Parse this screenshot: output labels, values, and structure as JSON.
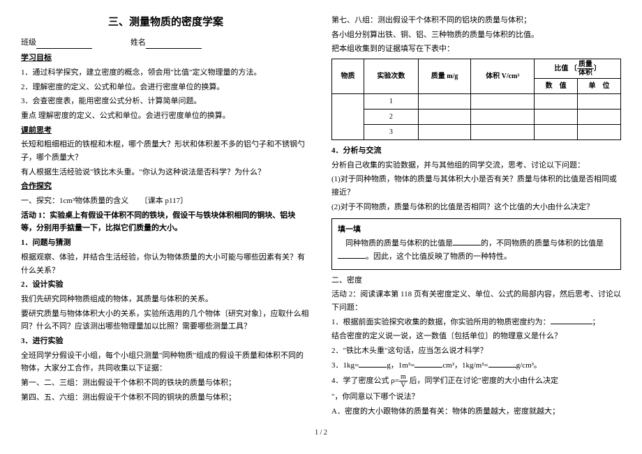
{
  "title": "三、测量物质的密度学案",
  "class_label": "班级",
  "name_label": "姓名",
  "left": {
    "h_goal": "学习目标",
    "goal1": "1．通过科学探究，建立密度的概念，领会用\"比值\"定义物理量的方法。",
    "goal2": "2．理解密度的定义、公式和单位。会进行密度单位的换算。",
    "goal3": "3．会查密度表，能用密度公式分析、计算简单问题。",
    "key": "重点 理解密度的定义、公式和单位。会进行密度单位的换算。",
    "h_preq": "课前思考",
    "preq1": "长短和粗细相近的铁棍和木棍，哪个质量大？形状和体积差不多的铝勺子和不锈钢勺子，哪个质量大？",
    "preq2": "有人根据生活经验说\"铁比木头重。\"你认为这种说法是否科学？为什么？",
    "h_coop": "合作探究",
    "coop1": "一、探究：1cm³物体质量的含义　　〔课本 p117〕",
    "act1": "活动 1：实验桌上有假设干体积不同的铁块，假设干与铁块体积相同的铜块、铝块等，分别用手掂量一下，比拟它们质量的大小。",
    "h_q1": "1．问题与猜测",
    "q1_text": "根据观察、体验，并结合生活经验，你认为物体质量的大小可能与哪些因素有关？有什么关系？",
    "h_q2": "2．设计实验",
    "q2_text1": "我们先研究同种物质组成的物体，其质量与体积的关系。",
    "q2_text2": "要研究质量与物体体积大小的关系，实验所选用的几个物体〔研究对象〕，应取什么相同？什么不同？应该测出哪些物理量加以比照？需要哪些测量工具？",
    "h_q3": "3．进行实验",
    "q3_text1": "全班同学分假设干小组，每个小组只测量\"同种物质\"组成的假设干质量和体积不同的物体，大家分工合作，共同收集以下证据：",
    "q3_text2": "第一、二、三组：测出假设干个体积不同的铁块的质量与体积；",
    "q3_text3": "第四、五、六组：测出假设干个体积不同的铜块的质量与体积；"
  },
  "right": {
    "r1": "第七、八组：测出假设干个体积不同的铝块的质量与体积；",
    "r2": "各小组分别算出铁、铜、铝、三种物质的质量与体积的比值。",
    "r3": "把本组收集到的证据填写在下表中：",
    "table": {
      "h_material": "物质",
      "h_count": "实验次数",
      "h_mass": "质量 m/g",
      "h_vol": "体积 V/cm³",
      "h_ratio_top": "比值 ",
      "h_ratio_num": "质量",
      "h_ratio_den": "体积",
      "h_val": "数　值",
      "h_unit": "单　位",
      "rows": [
        "1",
        "2",
        "3"
      ]
    },
    "h_analysis": "4．分析与交流",
    "a1": "分析自己收集的实验数据，并与其他组的同学交流，思考、讨论以下问题：",
    "a2": "(1)对于同种物质，物体的质量与其体积大小是否有关？质量与体积的比值是否相同或接近？",
    "a3": "(2)对于不同物质，质量与体积的比值是否相同？这个比值的大小由什么决定？",
    "fill_h": "填一填",
    "fill1_a": "同种物质的质量与体积的比值是",
    "fill1_b": "的，不同物质的质量与体积的比值是",
    "fill1_c": "。因此，这个比值反映了物质的一种特性。",
    "sec2": "二、密度",
    "act2": "活动 2：阅读课本第 118 页有关密度定义、单位、公式的局部内容，然后思考、讨论以下问题：",
    "p1": "1．根据前面实验探究收集的数据，你实验所用的物质密度约为：",
    "p1b": "结合密度的定义说一说，这一数值〔包括单位〕的物理意义是什么？",
    "p2": "2．\"铁比木头重\"这句话，应当怎么说才科学？",
    "p3a": "3．1kg=",
    "p3b": "g，1m³=",
    "p3c": "cm³，1kg/m³=",
    "p3d": "g/cm³。",
    "p4a": "4．学了密度公式 ρ=",
    "p4_num": "m",
    "p4_den": "V",
    "p4b": " 后，同学们正在讨论\"密度的大小由什么决定",
    "p4c": "\"，你同意以下哪个说法？",
    "pA": "A．密度的大小跟物体的质量有关：物体的质量越大，密度就越大；"
  },
  "pagenum": "1 / 2"
}
